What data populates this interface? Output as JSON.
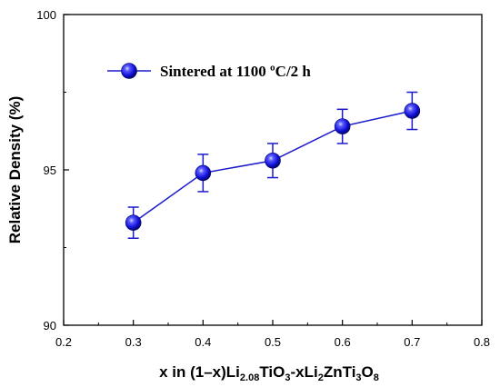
{
  "chart_data": {
    "type": "scatter",
    "xlabel": {
      "parts": [
        {
          "text": "x in (1–x)Li",
          "baseline": "normal"
        },
        {
          "text": "2.08",
          "baseline": "sub"
        },
        {
          "text": "TiO",
          "baseline": "normal"
        },
        {
          "text": "3",
          "baseline": "sub"
        },
        {
          "text": "-xLi",
          "baseline": "normal"
        },
        {
          "text": "2",
          "baseline": "sub"
        },
        {
          "text": "ZnTi",
          "baseline": "normal"
        },
        {
          "text": "3",
          "baseline": "sub"
        },
        {
          "text": "O",
          "baseline": "normal"
        },
        {
          "text": "8",
          "baseline": "sub"
        }
      ]
    },
    "ylabel": "Relative Density (%)",
    "xlim": [
      0.2,
      0.8
    ],
    "ylim": [
      90,
      100
    ],
    "x_ticks": [
      0.2,
      0.3,
      0.4,
      0.5,
      0.6,
      0.7,
      0.8
    ],
    "y_ticks": [
      90,
      95,
      100
    ],
    "grid": false,
    "legend_position": "top-left",
    "series": [
      {
        "name": "Sintered at 1100 ºC/2 h",
        "color": "#1a1acc",
        "marker": "sphere",
        "x": [
          0.3,
          0.4,
          0.5,
          0.6,
          0.7
        ],
        "y": [
          93.3,
          94.9,
          95.3,
          96.4,
          96.9
        ],
        "yerr": [
          0.5,
          0.6,
          0.55,
          0.55,
          0.6
        ]
      }
    ]
  }
}
